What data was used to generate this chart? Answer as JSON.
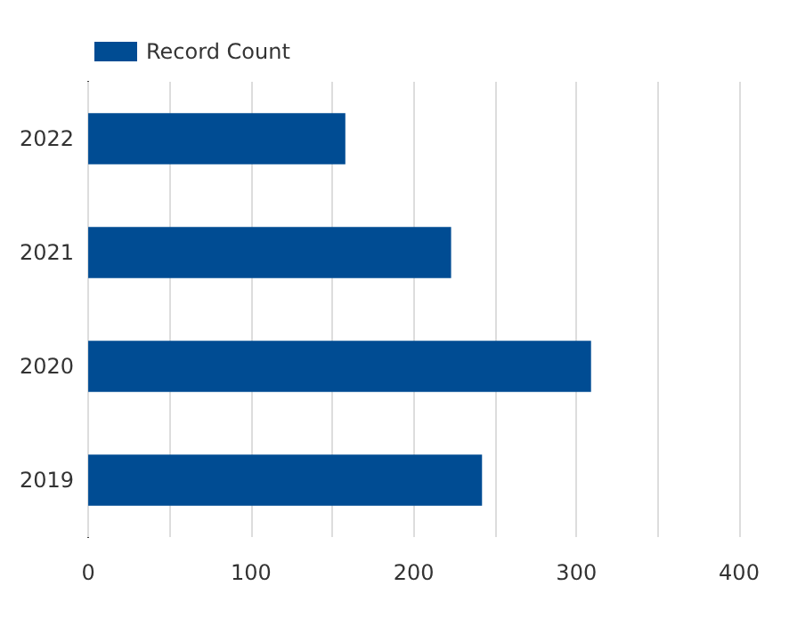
{
  "chart_data": {
    "type": "bar",
    "orientation": "horizontal",
    "categories": [
      "2022",
      "2021",
      "2020",
      "2019"
    ],
    "series": [
      {
        "name": "Record Count",
        "color": "#004c93",
        "values": [
          158,
          223,
          309,
          242
        ]
      }
    ],
    "xlim": [
      0,
      400
    ],
    "xticks": [
      0,
      {
        "value": 50,
        "label": null
      },
      100,
      {
        "value": 150,
        "label": null
      },
      200,
      {
        "value": 250,
        "label": null
      },
      300,
      {
        "value": 350,
        "label": null
      },
      400
    ],
    "grid": "x",
    "legend": "top left"
  }
}
